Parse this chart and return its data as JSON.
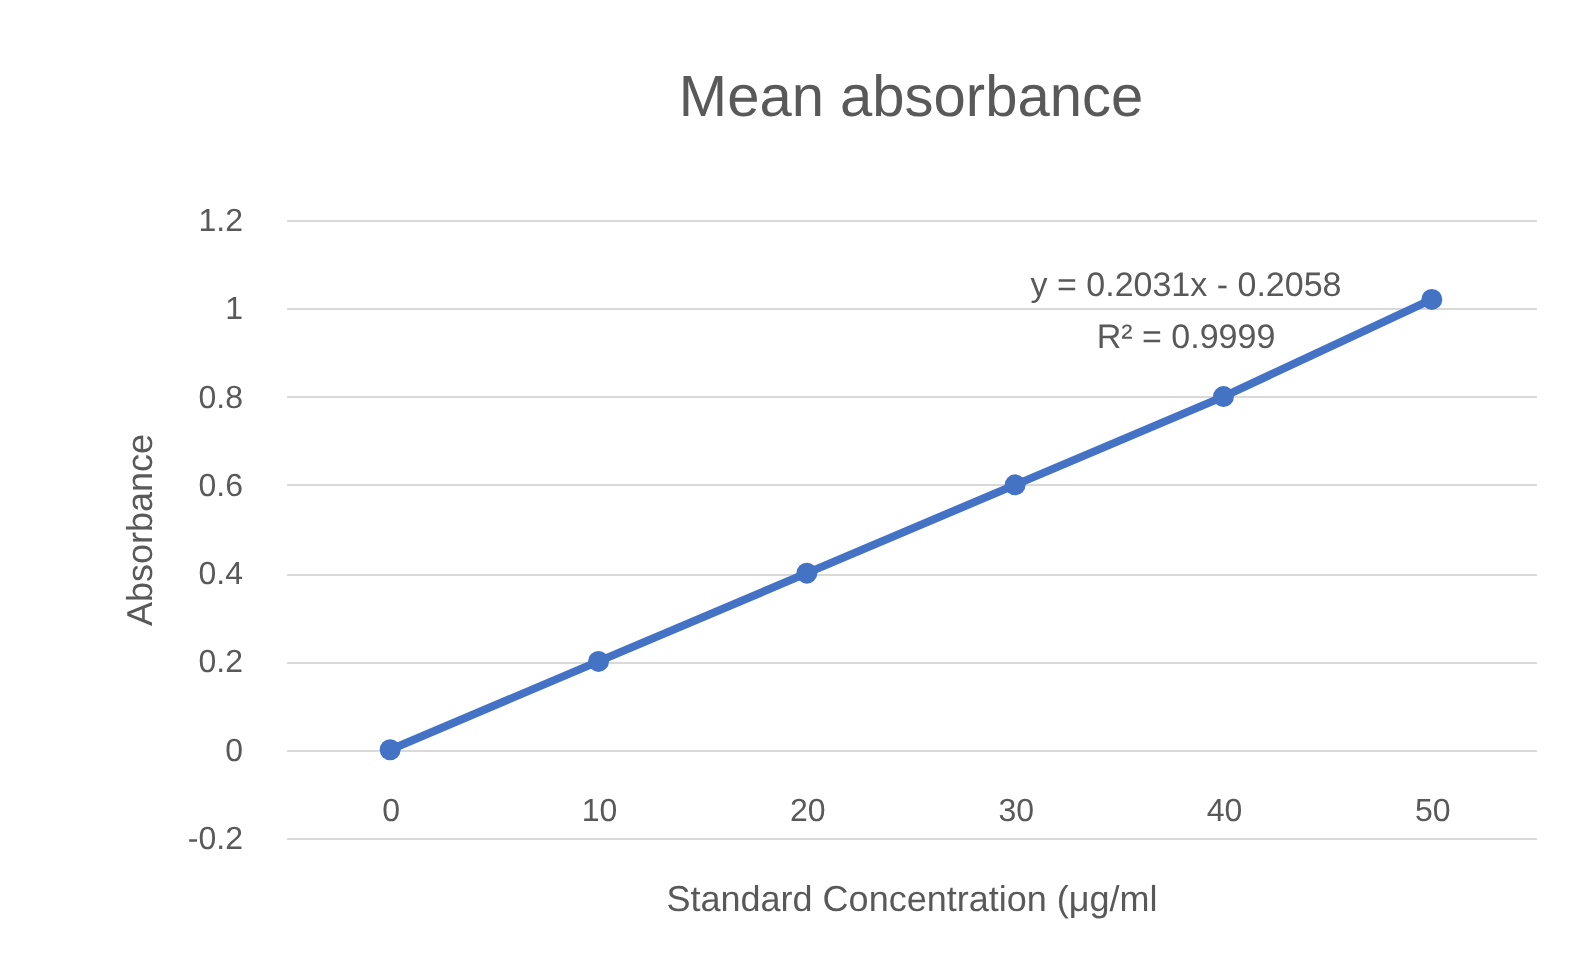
{
  "chart_data": {
    "type": "line",
    "title": "Mean absorbance",
    "xlabel": "Standard Concentration (μg/ml",
    "ylabel": "Absorbance",
    "categories": [
      "0",
      "10",
      "20",
      "30",
      "40",
      "50"
    ],
    "series": [
      {
        "color": "#4472c4",
        "values": [
          0,
          0.2,
          0.4,
          0.6,
          0.8,
          1.02
        ]
      }
    ],
    "annotations": [
      "y = 0.2031x - 0.2058",
      "R² = 0.9999"
    ],
    "ylim": [
      -0.2,
      1.2
    ],
    "yticks": [
      -0.2,
      0,
      0.2,
      0.4,
      0.6,
      0.8,
      1,
      1.2
    ],
    "grid": "y",
    "marker": "circle",
    "legend": false
  }
}
